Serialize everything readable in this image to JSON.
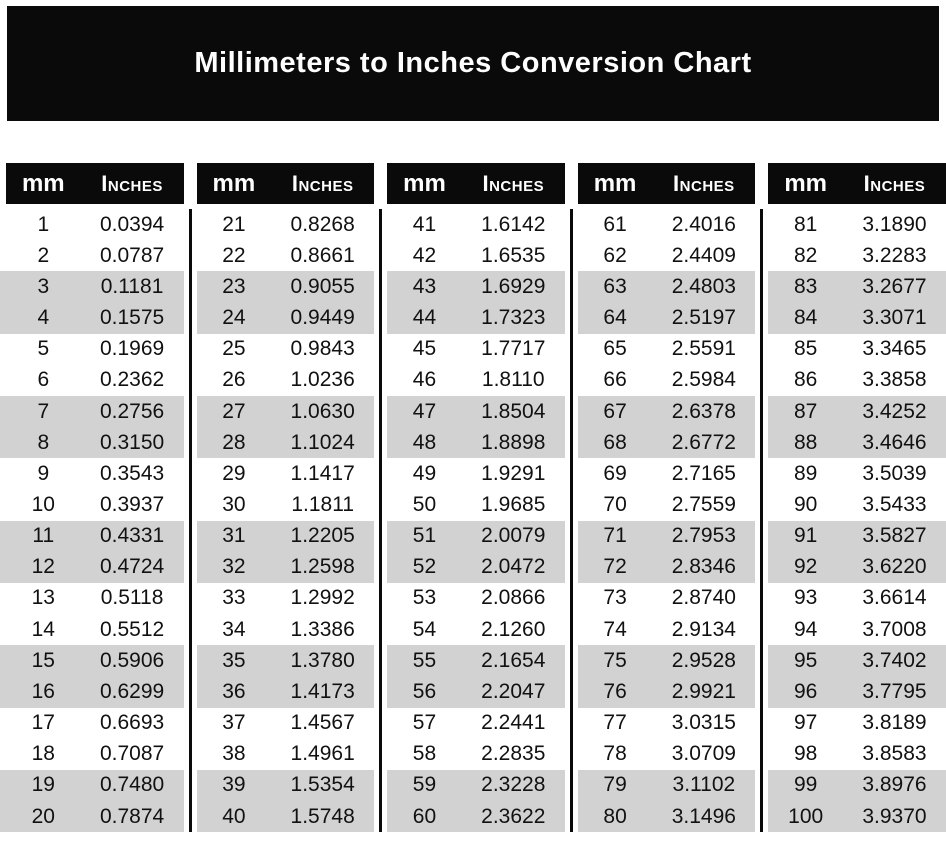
{
  "title": "Millimeters to Inches Conversion Chart",
  "header": {
    "mm": "mm",
    "inches": "Inches"
  },
  "colors": {
    "black": "#0a0a0a",
    "stripe": "#d2d2d2",
    "title_text": "#ffffff",
    "row_text": "#111111",
    "page_bg": "#ffffff"
  },
  "table": {
    "groups": [
      {
        "rows": [
          [
            "1",
            "0.0394"
          ],
          [
            "2",
            "0.0787"
          ],
          [
            "3",
            "0.1181"
          ],
          [
            "4",
            "0.1575"
          ],
          [
            "5",
            "0.1969"
          ],
          [
            "6",
            "0.2362"
          ],
          [
            "7",
            "0.2756"
          ],
          [
            "8",
            "0.3150"
          ],
          [
            "9",
            "0.3543"
          ],
          [
            "10",
            "0.3937"
          ],
          [
            "11",
            "0.4331"
          ],
          [
            "12",
            "0.4724"
          ],
          [
            "13",
            "0.5118"
          ],
          [
            "14",
            "0.5512"
          ],
          [
            "15",
            "0.5906"
          ],
          [
            "16",
            "0.6299"
          ],
          [
            "17",
            "0.6693"
          ],
          [
            "18",
            "0.7087"
          ],
          [
            "19",
            "0.7480"
          ],
          [
            "20",
            "0.7874"
          ]
        ]
      },
      {
        "rows": [
          [
            "21",
            "0.8268"
          ],
          [
            "22",
            "0.8661"
          ],
          [
            "23",
            "0.9055"
          ],
          [
            "24",
            "0.9449"
          ],
          [
            "25",
            "0.9843"
          ],
          [
            "26",
            "1.0236"
          ],
          [
            "27",
            "1.0630"
          ],
          [
            "28",
            "1.1024"
          ],
          [
            "29",
            "1.1417"
          ],
          [
            "30",
            "1.1811"
          ],
          [
            "31",
            "1.2205"
          ],
          [
            "32",
            "1.2598"
          ],
          [
            "33",
            "1.2992"
          ],
          [
            "34",
            "1.3386"
          ],
          [
            "35",
            "1.3780"
          ],
          [
            "36",
            "1.4173"
          ],
          [
            "37",
            "1.4567"
          ],
          [
            "38",
            "1.4961"
          ],
          [
            "39",
            "1.5354"
          ],
          [
            "40",
            "1.5748"
          ]
        ]
      },
      {
        "rows": [
          [
            "41",
            "1.6142"
          ],
          [
            "42",
            "1.6535"
          ],
          [
            "43",
            "1.6929"
          ],
          [
            "44",
            "1.7323"
          ],
          [
            "45",
            "1.7717"
          ],
          [
            "46",
            "1.8110"
          ],
          [
            "47",
            "1.8504"
          ],
          [
            "48",
            "1.8898"
          ],
          [
            "49",
            "1.9291"
          ],
          [
            "50",
            "1.9685"
          ],
          [
            "51",
            "2.0079"
          ],
          [
            "52",
            "2.0472"
          ],
          [
            "53",
            "2.0866"
          ],
          [
            "54",
            "2.1260"
          ],
          [
            "55",
            "2.1654"
          ],
          [
            "56",
            "2.2047"
          ],
          [
            "57",
            "2.2441"
          ],
          [
            "58",
            "2.2835"
          ],
          [
            "59",
            "2.3228"
          ],
          [
            "60",
            "2.3622"
          ]
        ]
      },
      {
        "rows": [
          [
            "61",
            "2.4016"
          ],
          [
            "62",
            "2.4409"
          ],
          [
            "63",
            "2.4803"
          ],
          [
            "64",
            "2.5197"
          ],
          [
            "65",
            "2.5591"
          ],
          [
            "66",
            "2.5984"
          ],
          [
            "67",
            "2.6378"
          ],
          [
            "68",
            "2.6772"
          ],
          [
            "69",
            "2.7165"
          ],
          [
            "70",
            "2.7559"
          ],
          [
            "71",
            "2.7953"
          ],
          [
            "72",
            "2.8346"
          ],
          [
            "73",
            "2.8740"
          ],
          [
            "74",
            "2.9134"
          ],
          [
            "75",
            "2.9528"
          ],
          [
            "76",
            "2.9921"
          ],
          [
            "77",
            "3.0315"
          ],
          [
            "78",
            "3.0709"
          ],
          [
            "79",
            "3.1102"
          ],
          [
            "80",
            "3.1496"
          ]
        ]
      },
      {
        "rows": [
          [
            "81",
            "3.1890"
          ],
          [
            "82",
            "3.2283"
          ],
          [
            "83",
            "3.2677"
          ],
          [
            "84",
            "3.3071"
          ],
          [
            "85",
            "3.3465"
          ],
          [
            "86",
            "3.3858"
          ],
          [
            "87",
            "3.4252"
          ],
          [
            "88",
            "3.4646"
          ],
          [
            "89",
            "3.5039"
          ],
          [
            "90",
            "3.5433"
          ],
          [
            "91",
            "3.5827"
          ],
          [
            "92",
            "3.6220"
          ],
          [
            "93",
            "3.6614"
          ],
          [
            "94",
            "3.7008"
          ],
          [
            "95",
            "3.7402"
          ],
          [
            "96",
            "3.7795"
          ],
          [
            "97",
            "3.8189"
          ],
          [
            "98",
            "3.8583"
          ],
          [
            "99",
            "3.8976"
          ],
          [
            "100",
            "3.9370"
          ]
        ]
      }
    ]
  }
}
